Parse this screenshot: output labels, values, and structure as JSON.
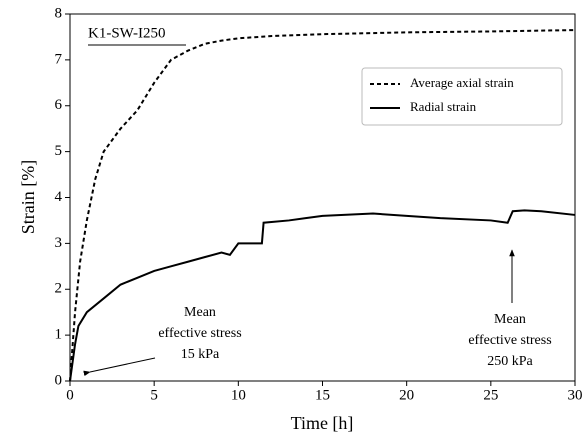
{
  "chart_data": {
    "type": "line",
    "title": "K1-SW-I250",
    "xlabel": "Time [h]",
    "ylabel": "Strain [%]",
    "xlim": [
      0,
      30
    ],
    "ylim": [
      0,
      8
    ],
    "xticks": [
      0,
      5,
      10,
      15,
      20,
      25,
      30
    ],
    "yticks": [
      0,
      1,
      2,
      3,
      4,
      5,
      6,
      7,
      8
    ],
    "legend": "upper right",
    "series": [
      {
        "name": "Average axial strain",
        "color": "#000000",
        "style": "dashed",
        "x": [
          0,
          0.3,
          0.6,
          1,
          1.5,
          2,
          3,
          4,
          5,
          6,
          7,
          8,
          9,
          10,
          12,
          15,
          20,
          25,
          30
        ],
        "values": [
          0,
          1.5,
          2.6,
          3.5,
          4.4,
          5.0,
          5.5,
          5.9,
          6.5,
          7.0,
          7.2,
          7.35,
          7.42,
          7.47,
          7.52,
          7.56,
          7.6,
          7.62,
          7.65
        ]
      },
      {
        "name": "Radial strain",
        "color": "#000000",
        "style": "solid",
        "x": [
          0,
          0.3,
          0.5,
          1,
          2,
          3,
          4,
          5,
          6,
          7,
          8,
          9,
          9.5,
          10,
          11.4,
          11.5,
          13,
          14,
          15,
          18,
          20,
          22,
          25,
          26,
          26.3,
          27,
          28,
          30
        ],
        "values": [
          0,
          0.8,
          1.2,
          1.5,
          1.8,
          2.1,
          2.25,
          2.4,
          2.5,
          2.6,
          2.7,
          2.8,
          2.75,
          3.0,
          3.0,
          3.45,
          3.5,
          3.55,
          3.6,
          3.65,
          3.6,
          3.55,
          3.5,
          3.45,
          3.7,
          3.72,
          3.7,
          3.62
        ]
      }
    ],
    "annotations": [
      {
        "text": [
          "Mean",
          "effective stress",
          "15 kPa"
        ]
      },
      {
        "text": [
          "Mean",
          "effective stress",
          "250 kPa"
        ]
      }
    ]
  }
}
